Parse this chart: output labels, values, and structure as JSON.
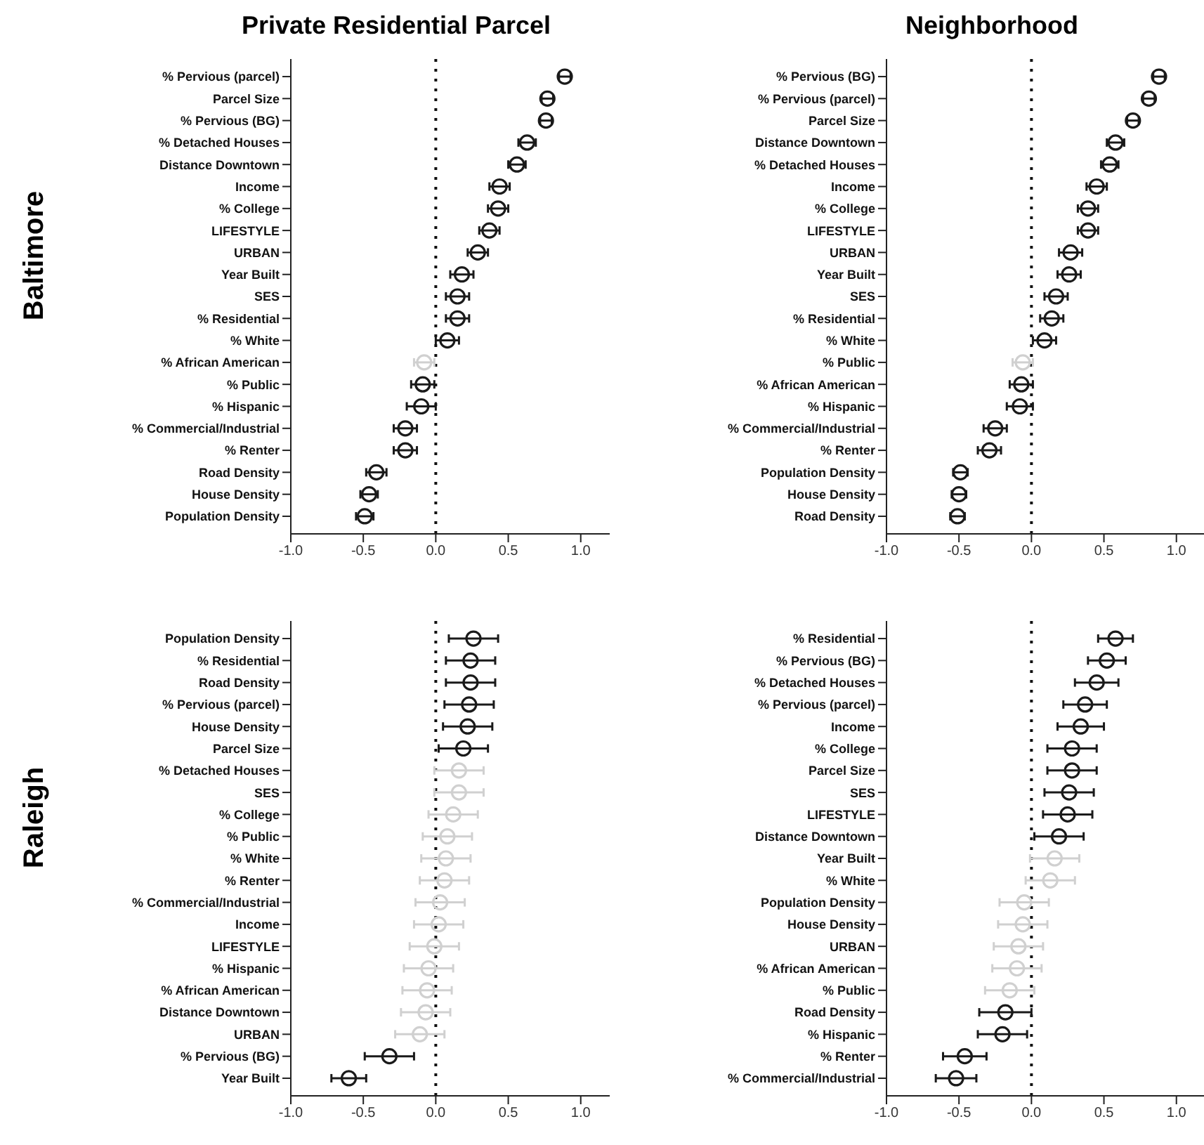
{
  "chart_data": [
    {
      "type": "scatter",
      "orientation": "horizontal",
      "title": "Private Residential Parcel",
      "ylabel": "Baltimore",
      "marker": "circle",
      "categories": [
        "% Pervious (parcel)",
        "Parcel Size",
        "% Pervious (BG)",
        "% Detached Houses",
        "Distance Downtown",
        "Income",
        "% College",
        "LIFESTYLE",
        "URBAN",
        "Year Built",
        "SES",
        "% Residential",
        "% White",
        "% African American",
        "% Public",
        "% Hispanic",
        "% Commercial/Industrial",
        "% Renter",
        "Road Density",
        "House Density",
        "Population Density"
      ],
      "values": [
        0.89,
        0.77,
        0.76,
        0.63,
        0.56,
        0.44,
        0.43,
        0.37,
        0.29,
        0.18,
        0.15,
        0.15,
        0.08,
        -0.08,
        -0.09,
        -0.1,
        -0.21,
        -0.21,
        -0.41,
        -0.46,
        -0.49
      ],
      "errors": [
        0.04,
        0.04,
        0.04,
        0.06,
        0.06,
        0.07,
        0.07,
        0.07,
        0.07,
        0.08,
        0.08,
        0.08,
        0.08,
        0.07,
        0.08,
        0.1,
        0.08,
        0.08,
        0.07,
        0.06,
        0.06
      ],
      "colors": [
        "#1a1a1a",
        "#1a1a1a",
        "#1a1a1a",
        "#1a1a1a",
        "#1a1a1a",
        "#1a1a1a",
        "#1a1a1a",
        "#1a1a1a",
        "#1a1a1a",
        "#1a1a1a",
        "#1a1a1a",
        "#1a1a1a",
        "#1a1a1a",
        "#d0d0d0",
        "#1a1a1a",
        "#1a1a1a",
        "#1a1a1a",
        "#1a1a1a",
        "#1a1a1a",
        "#1a1a1a",
        "#1a1a1a"
      ],
      "xlim": [
        -1,
        1.2
      ],
      "xticks": [
        {
          "value": -1,
          "label": "-1.0"
        },
        {
          "value": -0.5,
          "label": "-0.5"
        },
        {
          "value": 0,
          "label": "0.0"
        },
        {
          "value": 0.5,
          "label": "0.5"
        },
        {
          "value": 1,
          "label": "1.0"
        }
      ],
      "ref_lines": [
        {
          "axis": "x",
          "value": 0,
          "line_style": "dotted"
        }
      ]
    },
    {
      "type": "scatter",
      "orientation": "horizontal",
      "title": "Neighborhood",
      "marker": "circle",
      "categories": [
        "% Pervious (BG)",
        "% Pervious (parcel)",
        "Parcel Size",
        "Distance Downtown",
        "% Detached Houses",
        "Income",
        "% College",
        "LIFESTYLE",
        "URBAN",
        "Year Built",
        "SES",
        "% Residential",
        "% White",
        "% Public",
        "% African American",
        "% Hispanic",
        "% Commercial/Industrial",
        "% Renter",
        "Population Density",
        "House Density",
        "Road Density"
      ],
      "values": [
        0.88,
        0.81,
        0.7,
        0.58,
        0.54,
        0.45,
        0.39,
        0.39,
        0.27,
        0.26,
        0.17,
        0.14,
        0.09,
        -0.06,
        -0.07,
        -0.08,
        -0.25,
        -0.29,
        -0.49,
        -0.5,
        -0.51
      ],
      "errors": [
        0.04,
        0.04,
        0.04,
        0.06,
        0.06,
        0.07,
        0.07,
        0.07,
        0.08,
        0.08,
        0.08,
        0.08,
        0.08,
        0.07,
        0.08,
        0.09,
        0.08,
        0.08,
        0.05,
        0.05,
        0.05
      ],
      "colors": [
        "#1a1a1a",
        "#1a1a1a",
        "#1a1a1a",
        "#1a1a1a",
        "#1a1a1a",
        "#1a1a1a",
        "#1a1a1a",
        "#1a1a1a",
        "#1a1a1a",
        "#1a1a1a",
        "#1a1a1a",
        "#1a1a1a",
        "#1a1a1a",
        "#d0d0d0",
        "#1a1a1a",
        "#1a1a1a",
        "#1a1a1a",
        "#1a1a1a",
        "#1a1a1a",
        "#1a1a1a",
        "#1a1a1a"
      ],
      "xlim": [
        -1,
        1.2
      ],
      "xticks": [
        {
          "value": -1,
          "label": "-1.0"
        },
        {
          "value": -0.5,
          "label": "-0.5"
        },
        {
          "value": 0,
          "label": "0.0"
        },
        {
          "value": 0.5,
          "label": "0.5"
        },
        {
          "value": 1,
          "label": "1.0"
        }
      ],
      "ref_lines": [
        {
          "axis": "x",
          "value": 0,
          "line_style": "dotted"
        }
      ]
    },
    {
      "type": "scatter",
      "orientation": "horizontal",
      "ylabel": "Raleigh",
      "marker": "circle",
      "categories": [
        "Population Density",
        "% Residential",
        "Road Density",
        "% Pervious (parcel)",
        "House Density",
        "Parcel Size",
        "% Detached Houses",
        "SES",
        "% College",
        "% Public",
        "% White",
        "% Renter",
        "% Commercial/Industrial",
        "Income",
        "LIFESTYLE",
        "% Hispanic",
        "% African American",
        "Distance Downtown",
        "URBAN",
        "% Pervious (BG)",
        "Year Built"
      ],
      "values": [
        0.26,
        0.24,
        0.24,
        0.23,
        0.22,
        0.19,
        0.16,
        0.16,
        0.12,
        0.08,
        0.07,
        0.06,
        0.03,
        0.02,
        -0.01,
        -0.05,
        -0.06,
        -0.07,
        -0.11,
        -0.32,
        -0.6
      ],
      "errors": [
        0.17,
        0.17,
        0.17,
        0.17,
        0.17,
        0.17,
        0.17,
        0.17,
        0.17,
        0.17,
        0.17,
        0.17,
        0.17,
        0.17,
        0.17,
        0.17,
        0.17,
        0.17,
        0.17,
        0.17,
        0.12
      ],
      "colors": [
        "#1a1a1a",
        "#1a1a1a",
        "#1a1a1a",
        "#1a1a1a",
        "#1a1a1a",
        "#1a1a1a",
        "#d0d0d0",
        "#d0d0d0",
        "#d0d0d0",
        "#d0d0d0",
        "#d0d0d0",
        "#d0d0d0",
        "#d0d0d0",
        "#d0d0d0",
        "#d0d0d0",
        "#d0d0d0",
        "#d0d0d0",
        "#d0d0d0",
        "#d0d0d0",
        "#1a1a1a",
        "#1a1a1a"
      ],
      "xlim": [
        -1,
        1.2
      ],
      "xticks": [
        {
          "value": -1,
          "label": "-1.0"
        },
        {
          "value": -0.5,
          "label": "-0.5"
        },
        {
          "value": 0,
          "label": "0.0"
        },
        {
          "value": 0.5,
          "label": "0.5"
        },
        {
          "value": 1,
          "label": "1.0"
        }
      ],
      "ref_lines": [
        {
          "axis": "x",
          "value": 0,
          "line_style": "dotted"
        }
      ]
    },
    {
      "type": "scatter",
      "orientation": "horizontal",
      "marker": "circle",
      "categories": [
        "% Residential",
        "% Pervious (BG)",
        "% Detached Houses",
        "% Pervious (parcel)",
        "Income",
        "% College",
        "Parcel Size",
        "SES",
        "LIFESTYLE",
        "Distance Downtown",
        "Year Built",
        "% White",
        "Population Density",
        "House Density",
        "URBAN",
        "% African American",
        "% Public",
        "Road Density",
        "% Hispanic",
        "% Renter",
        "% Commercial/Industrial"
      ],
      "values": [
        0.58,
        0.52,
        0.45,
        0.37,
        0.34,
        0.28,
        0.28,
        0.26,
        0.25,
        0.19,
        0.16,
        0.13,
        -0.05,
        -0.06,
        -0.09,
        -0.1,
        -0.15,
        -0.18,
        -0.2,
        -0.46,
        -0.52
      ],
      "errors": [
        0.12,
        0.13,
        0.15,
        0.15,
        0.16,
        0.17,
        0.17,
        0.17,
        0.17,
        0.17,
        0.17,
        0.17,
        0.17,
        0.17,
        0.17,
        0.17,
        0.17,
        0.18,
        0.17,
        0.15,
        0.14
      ],
      "colors": [
        "#1a1a1a",
        "#1a1a1a",
        "#1a1a1a",
        "#1a1a1a",
        "#1a1a1a",
        "#1a1a1a",
        "#1a1a1a",
        "#1a1a1a",
        "#1a1a1a",
        "#1a1a1a",
        "#d0d0d0",
        "#d0d0d0",
        "#d0d0d0",
        "#d0d0d0",
        "#d0d0d0",
        "#d0d0d0",
        "#d0d0d0",
        "#1a1a1a",
        "#1a1a1a",
        "#1a1a1a",
        "#1a1a1a"
      ],
      "xlim": [
        -1,
        1.2
      ],
      "xticks": [
        {
          "value": -1,
          "label": "-1.0"
        },
        {
          "value": -0.5,
          "label": "-0.5"
        },
        {
          "value": 0,
          "label": "0.0"
        },
        {
          "value": 0.5,
          "label": "0.5"
        },
        {
          "value": 1,
          "label": "1.0"
        }
      ],
      "ref_lines": [
        {
          "axis": "x",
          "value": 0,
          "line_style": "dotted"
        }
      ]
    }
  ]
}
